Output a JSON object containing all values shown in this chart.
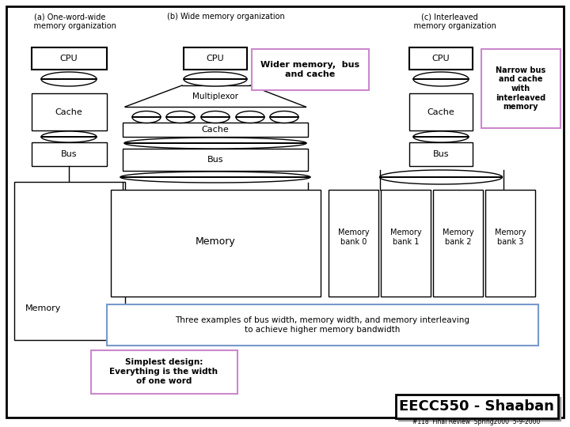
{
  "bg_color": "#ffffff",
  "title_a": "(a) One-word-wide\n    memory organization",
  "title_b": "(b) Wide memory organization",
  "title_c": "(c) Interleaved\n    memory organization",
  "annotation_wide": "Wider memory,  bus\nand cache",
  "annotation_narrow": "Narrow bus\nand cache\nwith\ninterleaved\nmemory",
  "annotation_three": "Three examples of bus width, memory width, and memory interleaving\nto achieve higher memory bandwidth",
  "annotation_simplest": "Simplest design:\nEverything is the width\nof one word",
  "footer_main": "EECC550 - Shaaban",
  "footer_sub": "#118  Final Review  Spring2000  5-9-2000",
  "pink_box_color": "#cc88cc",
  "blue_box_color": "#7799cc"
}
